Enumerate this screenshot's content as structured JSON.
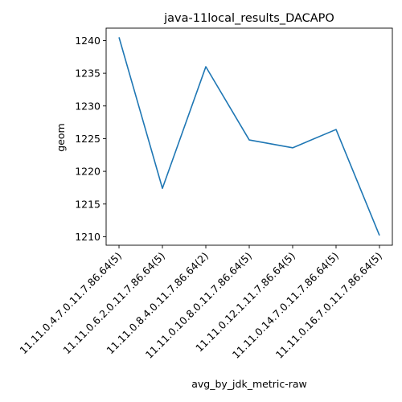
{
  "chart_data": {
    "type": "line",
    "title": "java-11local_results_DACAPO",
    "xlabel": "avg_by_jdk_metric-raw",
    "ylabel": "geom",
    "categories": [
      "11.11.0.4.7.0.11.7.86.64(5)",
      "11.11.0.6.2.0.11.7.86.64(5)",
      "11.11.0.8.4.0.11.7.86.64(2)",
      "11.11.0.10.8.0.11.7.86.64(5)",
      "11.11.0.12.1.11.7.86.64(5)",
      "11.11.0.14.7.0.11.7.86.64(5)",
      "11.11.0.16.7.0.11.7.86.64(5)"
    ],
    "series": [
      {
        "values": [
          1240.5,
          1217.4,
          1236.0,
          1224.8,
          1223.6,
          1226.4,
          1210.2
        ],
        "color": "#1f77b4"
      }
    ],
    "ylim": [
      1208.7,
      1241.9
    ],
    "yticks": [
      1210,
      1215,
      1220,
      1225,
      1230,
      1235,
      1240
    ],
    "grid": false,
    "legend": "none"
  }
}
